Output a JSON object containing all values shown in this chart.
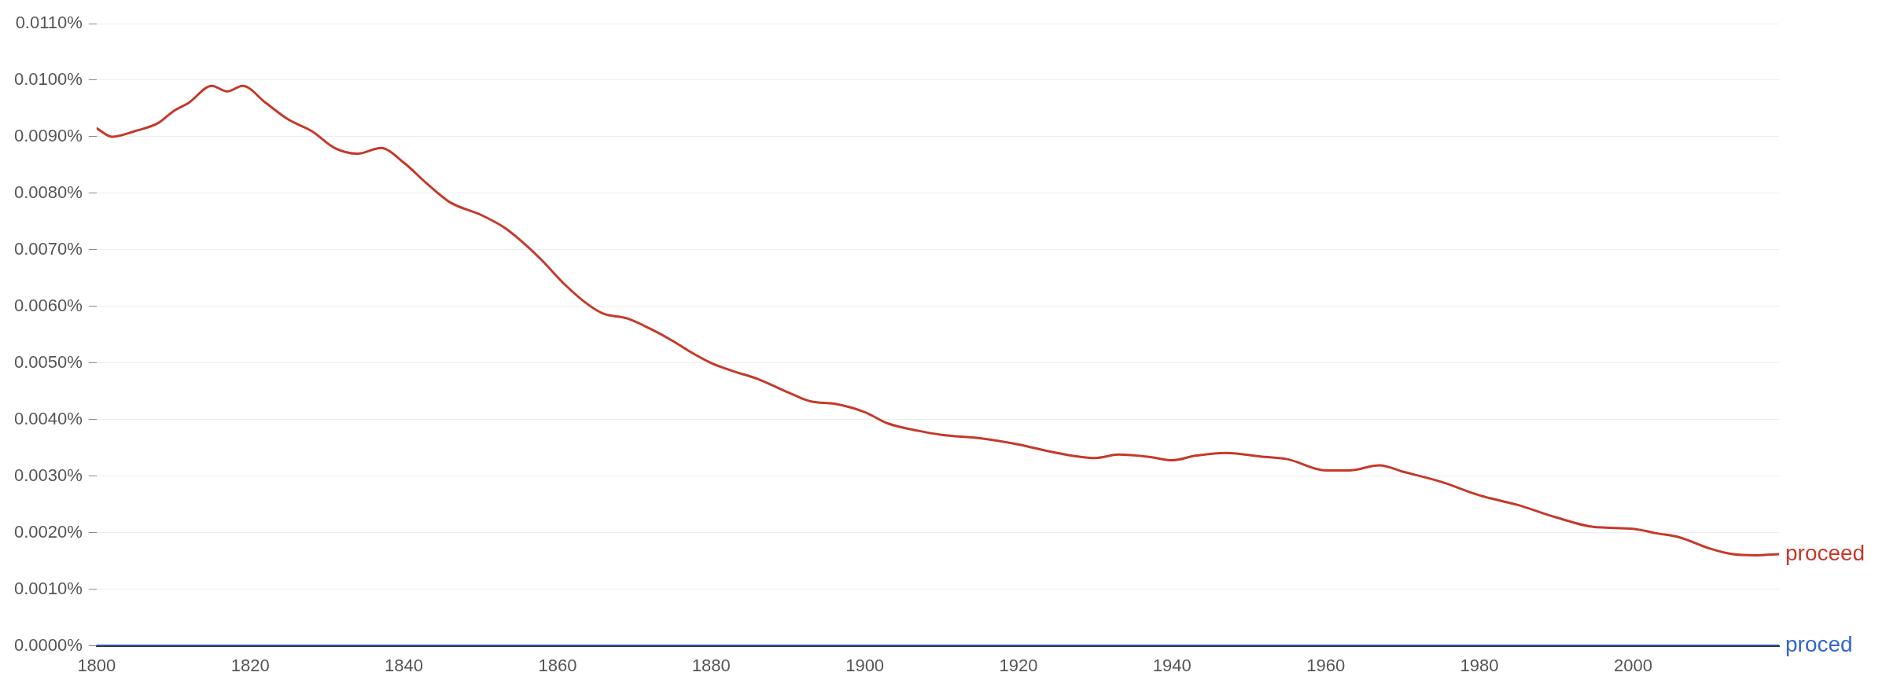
{
  "chart_data": {
    "type": "line",
    "grid": "y",
    "legend": false,
    "marker": "none",
    "line_style": "solid",
    "xlim": [
      1800,
      2019
    ],
    "xticks": [
      1800,
      1820,
      1840,
      1860,
      1880,
      1900,
      1920,
      1940,
      1960,
      1980,
      2000
    ],
    "ylim": [
      0,
      0.011
    ],
    "yticks": [
      {
        "value": 0,
        "label": "0.0000%"
      },
      {
        "value": 0.001,
        "label": "0.0010%"
      },
      {
        "value": 0.002,
        "label": "0.0020%"
      },
      {
        "value": 0.003,
        "label": "0.0030%"
      },
      {
        "value": 0.004,
        "label": "0.0040%"
      },
      {
        "value": 0.005,
        "label": "0.0050%"
      },
      {
        "value": 0.006,
        "label": "0.0060%"
      },
      {
        "value": 0.007,
        "label": "0.0070%"
      },
      {
        "value": 0.008,
        "label": "0.0080%"
      },
      {
        "value": 0.009,
        "label": "0.0090%"
      },
      {
        "value": 0.01,
        "label": "0.0100%"
      },
      {
        "value": 0.011,
        "label": "0.0110%"
      }
    ],
    "x": [
      1800,
      1802,
      1805,
      1808,
      1810,
      1812,
      1815,
      1817,
      1819,
      1822,
      1825,
      1828,
      1831,
      1834,
      1837,
      1840,
      1843,
      1846,
      1850,
      1853,
      1856,
      1858,
      1861,
      1864,
      1866,
      1869,
      1872,
      1875,
      1877,
      1880,
      1883,
      1886,
      1890,
      1893,
      1896,
      1900,
      1903,
      1907,
      1910,
      1915,
      1920,
      1925,
      1930,
      1933,
      1937,
      1940,
      1943,
      1947,
      1952,
      1955,
      1960,
      1963,
      1967,
      1970,
      1975,
      1980,
      1985,
      1990,
      1995,
      2000,
      2003,
      2006,
      2010,
      2013,
      2016,
      2019
    ],
    "series": [
      {
        "name": "proceed",
        "color": "#c53929",
        "values": [
          0.00915,
          0.009,
          0.0091,
          0.00924,
          0.00945,
          0.0096,
          0.0099,
          0.0098,
          0.0099,
          0.0096,
          0.0093,
          0.0091,
          0.0088,
          0.0087,
          0.0088,
          0.00854,
          0.00817,
          0.00784,
          0.00762,
          0.0074,
          0.00707,
          0.00681,
          0.00638,
          0.00603,
          0.00587,
          0.00579,
          0.00561,
          0.00539,
          0.00522,
          0.005,
          0.00485,
          0.00472,
          0.00448,
          0.00432,
          0.00428,
          0.00413,
          0.00393,
          0.0038,
          0.00373,
          0.00367,
          0.00356,
          0.00341,
          0.00332,
          0.00338,
          0.00334,
          0.00328,
          0.00336,
          0.00341,
          0.00334,
          0.0033,
          0.0031,
          0.0031,
          0.00319,
          0.00308,
          0.0029,
          0.00266,
          0.00249,
          0.00227,
          0.0021,
          0.00207,
          0.00199,
          0.00192,
          0.00172,
          0.00162,
          0.0016,
          0.00162
        ]
      },
      {
        "name": "proced",
        "color": "#3366cc",
        "values": [
          0,
          0,
          0,
          0,
          0,
          0,
          0,
          0,
          0,
          0,
          0,
          0,
          0,
          0,
          0,
          0,
          0,
          0,
          0,
          0,
          0,
          0,
          0,
          0,
          0,
          0,
          0,
          0,
          0,
          0,
          0,
          0,
          0,
          0,
          0,
          0,
          0,
          0,
          0,
          0,
          0,
          0,
          0,
          0,
          0,
          0,
          0,
          0,
          0,
          0,
          0,
          0,
          0,
          0,
          0,
          0,
          0,
          0,
          0,
          0,
          0,
          0,
          0,
          0,
          0,
          0
        ]
      }
    ]
  }
}
